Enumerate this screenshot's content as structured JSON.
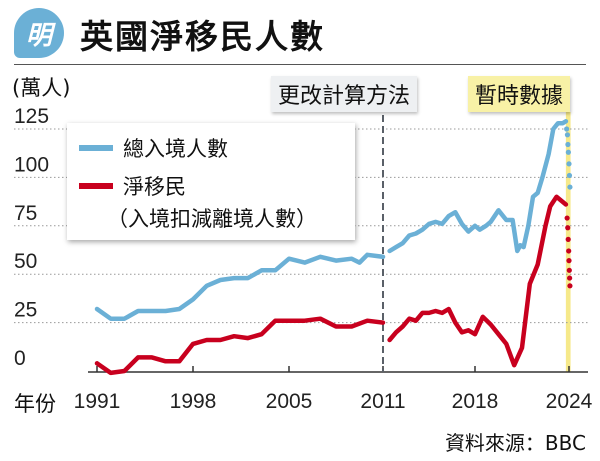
{
  "header": {
    "logo_text": "明",
    "title": "英國淨移民人數"
  },
  "annotations": {
    "method_change": "更改計算方法",
    "provisional": "暫時數據"
  },
  "source": "資料來源：BBC",
  "colors": {
    "total": "#6bb0d6",
    "net": "#c8001e",
    "provisional_band": "#f6e98a"
  },
  "chart_data": {
    "type": "line",
    "title": "英國淨移民人數",
    "ylabel": "(萬人)",
    "xlabel": "年份",
    "ylim": [
      -3,
      130
    ],
    "yticks": [
      0,
      25,
      50,
      75,
      100,
      125
    ],
    "ytick_labels": [
      "0",
      "25",
      "50",
      "75",
      "100",
      "125"
    ],
    "xticks": [
      1991,
      1998,
      2005,
      2011,
      2018,
      2024
    ],
    "xtick_labels": [
      "1991",
      "1998",
      "2005",
      "2011",
      "2018",
      "2024"
    ],
    "grid": "horizontal dotted",
    "method_change_year": 2011,
    "provisional_range": [
      2023.8,
      2024.1
    ],
    "legend": {
      "placement": "top-left",
      "entries": [
        "總入境人數",
        "淨移民"
      ],
      "net_note": "（入境扣減離境人數）"
    },
    "series": [
      {
        "name": "總入境人數",
        "segments": [
          {
            "x": [
              1991,
              1992,
              1993,
              1994,
              1995,
              1996,
              1997,
              1998,
              1999,
              2000,
              2001,
              2002,
              2003,
              2004,
              2005,
              2006,
              2007,
              2008,
              2009,
              2009.5,
              2010,
              2011
            ],
            "y": [
              32,
              27,
              27,
              31,
              31,
              31,
              32,
              37,
              44,
              47,
              48,
              48,
              52,
              52,
              58,
              56,
              59,
              57,
              58,
              56,
              60,
              59
            ]
          },
          {
            "x": [
              2011.5,
              2012,
              2012.5,
              2013,
              2013.5,
              2014,
              2014.5,
              2015,
              2015.5,
              2016,
              2016.5,
              2017,
              2017.5,
              2018,
              2018.3,
              2018.7,
              2019,
              2019.5,
              2020,
              2020.4,
              2020.7,
              2020.9,
              2021.1,
              2021.4,
              2021.7,
              2022,
              2022.3,
              2022.7,
              2023,
              2023.3,
              2023.6,
              2023.8
            ],
            "y": [
              62,
              64,
              66,
              70,
              71,
              73,
              76,
              77,
              76,
              80,
              82,
              76,
              72,
              75,
              73,
              75,
              77,
              83,
              78,
              78,
              62,
              65,
              64,
              75,
              90,
              92,
              100,
              112,
              125,
              128,
              128,
              129
            ]
          }
        ],
        "provisional": {
          "x": [
            2023.85,
            2023.9,
            2023.93,
            2023.96,
            2024.0,
            2024.03,
            2024.06
          ],
          "y": [
            125,
            122,
            117,
            113,
            107,
            101,
            95
          ]
        }
      },
      {
        "name": "淨移民",
        "segments": [
          {
            "x": [
              1991,
              1992,
              1993,
              1994,
              1995,
              1996,
              1997,
              1998,
              1999,
              2000,
              2001,
              2002,
              2003,
              2004,
              2005,
              2006,
              2007,
              2008,
              2009,
              2010,
              2011
            ],
            "y": [
              4,
              -1,
              0,
              7,
              7,
              5,
              5,
              14,
              16,
              16,
              18,
              17,
              19,
              26,
              26,
              26,
              27,
              23,
              23,
              26,
              25
            ]
          },
          {
            "x": [
              2011.5,
              2012,
              2012.5,
              2013,
              2013.5,
              2014,
              2014.5,
              2015,
              2015.5,
              2016,
              2016.5,
              2017,
              2017.5,
              2018,
              2018.5,
              2019,
              2019.5,
              2020,
              2020.5,
              2021,
              2021.5,
              2022,
              2022.5,
              2022.8,
              2023.2,
              2023.5,
              2023.8
            ],
            "y": [
              16,
              20,
              23,
              27,
              26,
              30,
              30,
              31,
              30,
              32,
              25,
              20,
              21,
              19,
              28,
              24,
              19,
              14,
              3,
              12,
              45,
              55,
              75,
              85,
              90,
              88,
              86
            ]
          }
        ],
        "provisional": {
          "x": [
            2023.88,
            2023.92,
            2023.95,
            2023.98,
            2024.0,
            2024.02,
            2024.04,
            2024.06
          ],
          "y": [
            79,
            74,
            68,
            62,
            57,
            52,
            48,
            44
          ]
        }
      }
    ]
  }
}
